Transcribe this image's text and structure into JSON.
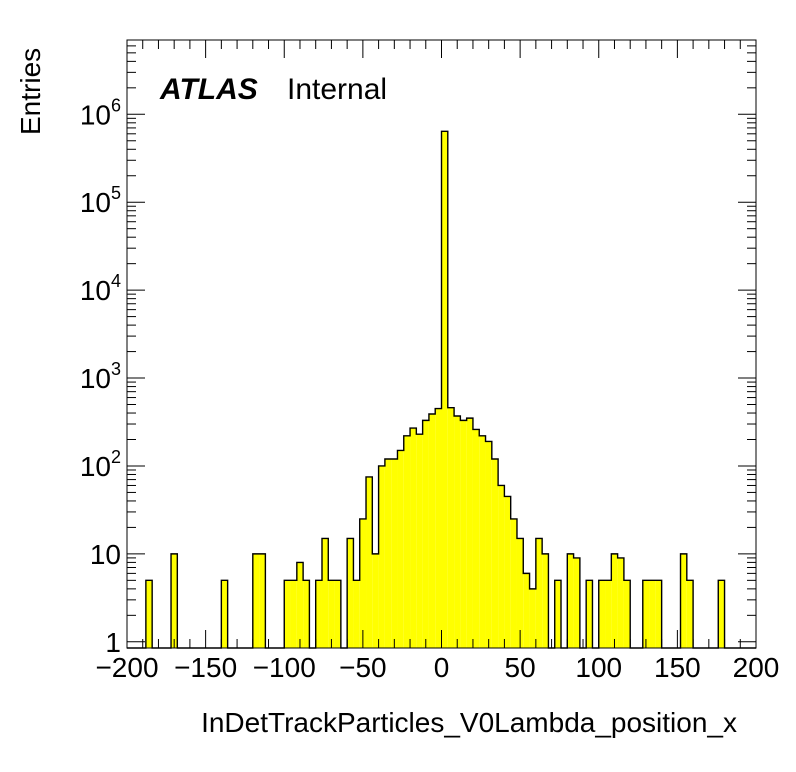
{
  "chart_data": {
    "type": "bar",
    "histogram": true,
    "title": "",
    "xlabel": "InDetTrackParticles_V0Lambda_position_x",
    "ylabel": "Entries",
    "xlim": [
      -200,
      200
    ],
    "ylim": [
      0.85,
      7000000
    ],
    "log_y": true,
    "bin_width": 4,
    "x_ticks": [
      -200,
      -150,
      -100,
      -50,
      0,
      50,
      100,
      150,
      200
    ],
    "x_tick_labels": [
      "−200",
      "−150",
      "−100",
      "−50",
      "0",
      "50",
      "100",
      "150",
      "200"
    ],
    "y_ticks": [
      {
        "value": 1,
        "base": "1",
        "exp": ""
      },
      {
        "value": 10,
        "base": "10",
        "exp": ""
      },
      {
        "value": 100,
        "base": "10",
        "exp": "2"
      },
      {
        "value": 1000,
        "base": "10",
        "exp": "3"
      },
      {
        "value": 10000,
        "base": "10",
        "exp": "4"
      },
      {
        "value": 100000,
        "base": "10",
        "exp": "5"
      },
      {
        "value": 1000000,
        "base": "10",
        "exp": "6"
      }
    ],
    "fill_color": "#ffff00",
    "line_color": "#000000",
    "bin_edges_left": [
      -200,
      -196,
      -192,
      -188,
      -184,
      -180,
      -176,
      -172,
      -168,
      -164,
      -160,
      -156,
      -152,
      -148,
      -144,
      -140,
      -136,
      -132,
      -128,
      -124,
      -120,
      -116,
      -112,
      -108,
      -104,
      -100,
      -96,
      -92,
      -88,
      -84,
      -80,
      -76,
      -72,
      -68,
      -64,
      -60,
      -56,
      -52,
      -48,
      -44,
      -40,
      -36,
      -32,
      -28,
      -24,
      -20,
      -16,
      -12,
      -8,
      -4,
      0,
      4,
      8,
      12,
      16,
      20,
      24,
      28,
      32,
      36,
      40,
      44,
      48,
      52,
      56,
      60,
      64,
      68,
      72,
      76,
      80,
      84,
      88,
      92,
      96,
      100,
      104,
      108,
      112,
      116,
      120,
      124,
      128,
      132,
      136,
      140,
      144,
      148,
      152,
      156,
      160,
      164,
      168,
      172,
      176,
      180,
      184,
      188,
      192,
      196
    ],
    "values": [
      0,
      0,
      0,
      5,
      0,
      0,
      0,
      10,
      0,
      0,
      0,
      0,
      0,
      0,
      0,
      5,
      0,
      0,
      0,
      0,
      10,
      10,
      0,
      0,
      0,
      5,
      5,
      8,
      5,
      0,
      5,
      15,
      5,
      5,
      0,
      15,
      5,
      25,
      75,
      10,
      100,
      120,
      120,
      150,
      220,
      270,
      230,
      330,
      390,
      450,
      640000,
      460,
      370,
      330,
      350,
      260,
      220,
      190,
      120,
      60,
      45,
      25,
      15,
      6,
      4,
      15,
      10,
      0,
      5,
      0,
      10,
      9,
      0,
      5,
      0,
      5,
      5,
      10,
      9,
      5,
      0,
      0,
      5,
      5,
      5,
      0,
      0,
      0,
      10,
      5,
      0,
      0,
      0,
      0,
      5,
      0,
      0,
      0,
      0,
      0
    ]
  },
  "atlas_label": {
    "experiment": "ATLAS",
    "status": "Internal"
  }
}
